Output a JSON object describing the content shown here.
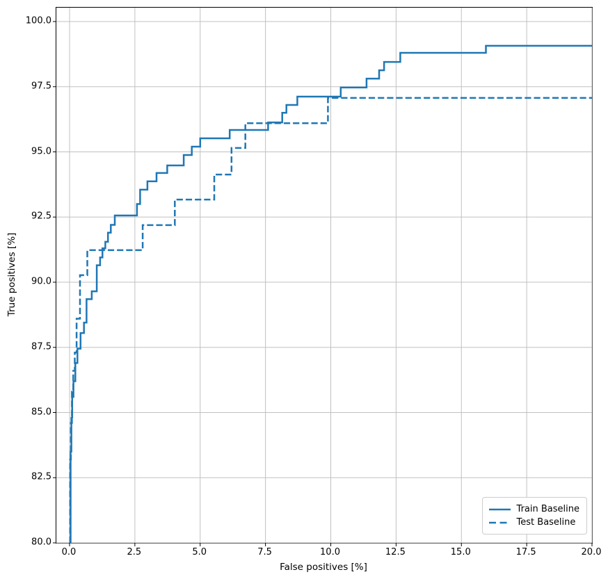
{
  "figure": {
    "background": "#ffffff",
    "accent_color": "#1f77b4",
    "grid_color": "#c0c0c0"
  },
  "chart_data": {
    "type": "line",
    "subtype": "roc-step-curves",
    "title": "",
    "xlabel": "False positives [%]",
    "ylabel": "True positives [%]",
    "xlim": [
      -0.5,
      20.0
    ],
    "ylim": [
      80.0,
      100.53
    ],
    "grid": true,
    "legend_position": "lower right",
    "xticks": [
      0.0,
      2.5,
      5.0,
      7.5,
      10.0,
      12.5,
      15.0,
      17.5,
      20.0
    ],
    "xtick_labels": [
      "0.0",
      "2.5",
      "5.0",
      "7.5",
      "10.0",
      "12.5",
      "15.0",
      "17.5",
      "20.0"
    ],
    "yticks": [
      80.0,
      82.5,
      85.0,
      87.5,
      90.0,
      92.5,
      95.0,
      97.5,
      100.0
    ],
    "ytick_labels": [
      "80.0",
      "82.5",
      "85.0",
      "87.5",
      "90.0",
      "92.5",
      "95.0",
      "97.5",
      "100.0"
    ],
    "series": [
      {
        "name": "Train Baseline",
        "style": "solid",
        "color": "#1f77b4",
        "line_width": 2.5,
        "points": [
          [
            0.04,
            80.0
          ],
          [
            0.04,
            83.5
          ],
          [
            0.07,
            83.5
          ],
          [
            0.07,
            84.8
          ],
          [
            0.1,
            84.8
          ],
          [
            0.1,
            85.6
          ],
          [
            0.15,
            85.6
          ],
          [
            0.15,
            86.2
          ],
          [
            0.22,
            86.2
          ],
          [
            0.22,
            86.9
          ],
          [
            0.3,
            86.9
          ],
          [
            0.3,
            87.45
          ],
          [
            0.42,
            87.45
          ],
          [
            0.42,
            88.05
          ],
          [
            0.55,
            88.05
          ],
          [
            0.55,
            88.45
          ],
          [
            0.65,
            88.45
          ],
          [
            0.65,
            89.35
          ],
          [
            0.85,
            89.35
          ],
          [
            0.85,
            89.65
          ],
          [
            1.04,
            89.65
          ],
          [
            1.04,
            90.65
          ],
          [
            1.17,
            90.65
          ],
          [
            1.17,
            90.95
          ],
          [
            1.26,
            90.95
          ],
          [
            1.26,
            91.3
          ],
          [
            1.37,
            91.3
          ],
          [
            1.37,
            91.55
          ],
          [
            1.47,
            91.55
          ],
          [
            1.47,
            91.9
          ],
          [
            1.58,
            91.9
          ],
          [
            1.58,
            92.2
          ],
          [
            1.73,
            92.2
          ],
          [
            1.73,
            92.56
          ],
          [
            2.58,
            92.56
          ],
          [
            2.58,
            93.0
          ],
          [
            2.7,
            93.0
          ],
          [
            2.7,
            93.55
          ],
          [
            2.98,
            93.55
          ],
          [
            2.98,
            93.87
          ],
          [
            3.33,
            93.87
          ],
          [
            3.33,
            94.19
          ],
          [
            3.74,
            94.19
          ],
          [
            3.74,
            94.48
          ],
          [
            4.37,
            94.48
          ],
          [
            4.37,
            94.88
          ],
          [
            4.68,
            94.88
          ],
          [
            4.68,
            95.2
          ],
          [
            5.0,
            95.2
          ],
          [
            5.0,
            95.52
          ],
          [
            6.13,
            95.52
          ],
          [
            6.13,
            95.84
          ],
          [
            7.6,
            95.84
          ],
          [
            7.6,
            96.13
          ],
          [
            8.14,
            96.13
          ],
          [
            8.14,
            96.5
          ],
          [
            8.3,
            96.5
          ],
          [
            8.3,
            96.8
          ],
          [
            8.72,
            96.8
          ],
          [
            8.72,
            97.12
          ],
          [
            10.38,
            97.12
          ],
          [
            10.38,
            97.47
          ],
          [
            11.37,
            97.47
          ],
          [
            11.37,
            97.81
          ],
          [
            11.85,
            97.81
          ],
          [
            11.85,
            98.13
          ],
          [
            12.04,
            98.13
          ],
          [
            12.04,
            98.45
          ],
          [
            12.66,
            98.45
          ],
          [
            12.66,
            98.8
          ],
          [
            15.94,
            98.8
          ],
          [
            15.94,
            99.07
          ],
          [
            20.0,
            99.07
          ]
        ]
      },
      {
        "name": "Test Baseline",
        "style": "dashed",
        "color": "#1f77b4",
        "line_width": 2.5,
        "points": [
          [
            0.02,
            80.0
          ],
          [
            0.02,
            83.2
          ],
          [
            0.05,
            83.2
          ],
          [
            0.05,
            84.6
          ],
          [
            0.09,
            84.6
          ],
          [
            0.09,
            85.8
          ],
          [
            0.14,
            85.8
          ],
          [
            0.14,
            86.6
          ],
          [
            0.2,
            86.6
          ],
          [
            0.2,
            87.3
          ],
          [
            0.27,
            87.3
          ],
          [
            0.27,
            88.6
          ],
          [
            0.4,
            88.6
          ],
          [
            0.4,
            90.27
          ],
          [
            0.68,
            90.27
          ],
          [
            0.68,
            91.23
          ],
          [
            2.8,
            91.23
          ],
          [
            2.8,
            92.19
          ],
          [
            4.03,
            92.19
          ],
          [
            4.03,
            93.17
          ],
          [
            5.54,
            93.17
          ],
          [
            5.54,
            94.13
          ],
          [
            6.2,
            94.13
          ],
          [
            6.2,
            95.15
          ],
          [
            6.73,
            95.15
          ],
          [
            6.73,
            96.1
          ],
          [
            9.89,
            96.1
          ],
          [
            9.89,
            97.07
          ],
          [
            20.0,
            97.07
          ]
        ]
      }
    ]
  },
  "legend": {
    "items": [
      {
        "label": "Train Baseline",
        "style": "solid"
      },
      {
        "label": "Test Baseline",
        "style": "dashed"
      }
    ]
  }
}
